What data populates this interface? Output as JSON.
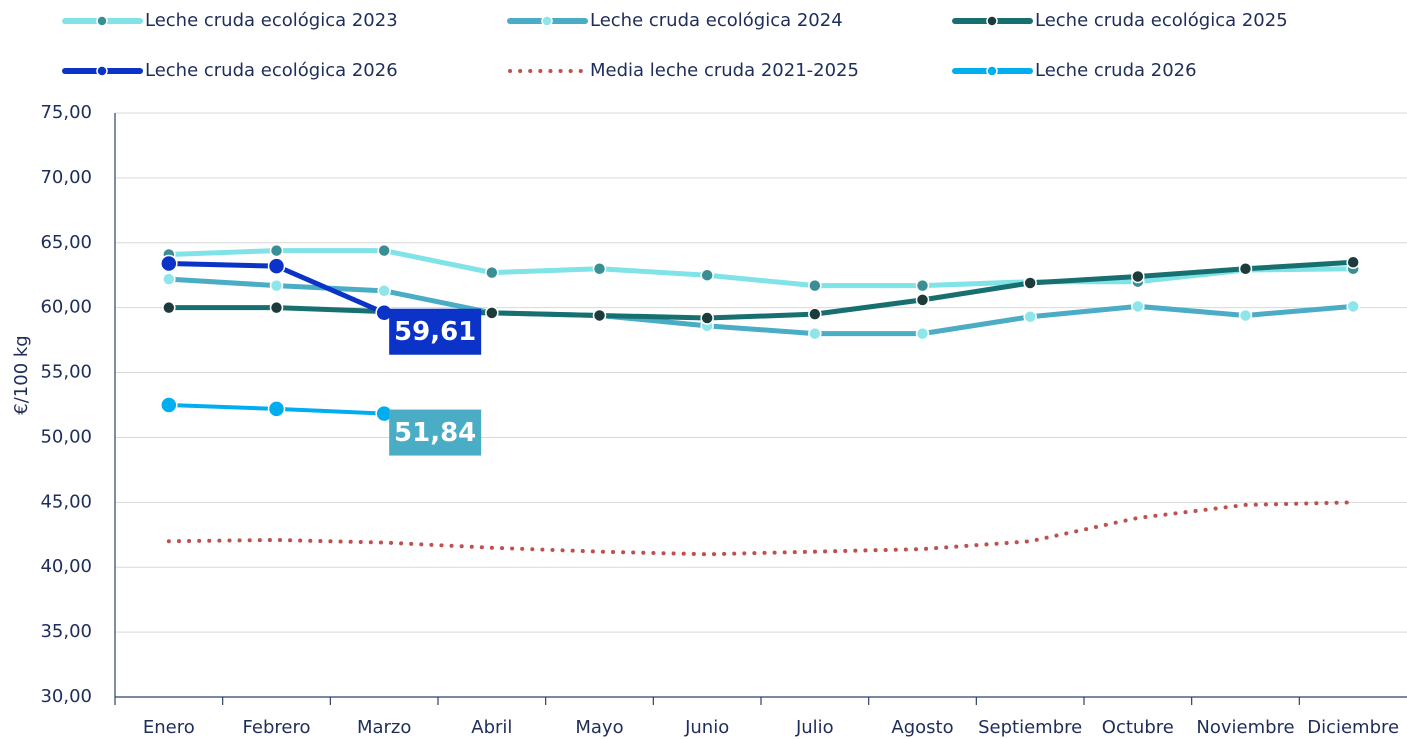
{
  "chart_data": {
    "type": "line",
    "y_label": "€/100 kg",
    "categories": [
      "Enero",
      "Febrero",
      "Marzo",
      "Abril",
      "Mayo",
      "Junio",
      "Julio",
      "Agosto",
      "Septiembre",
      "Octubre",
      "Noviembre",
      "Diciembre"
    ],
    "ylim": [
      30,
      75
    ],
    "yticks": [
      {
        "value": 30,
        "label": "30,00"
      },
      {
        "value": 35,
        "label": "35,00"
      },
      {
        "value": 40,
        "label": "40,00"
      },
      {
        "value": 45,
        "label": "45,00"
      },
      {
        "value": 50,
        "label": "50,00"
      },
      {
        "value": 55,
        "label": "55,00"
      },
      {
        "value": 60,
        "label": "60,00"
      },
      {
        "value": 65,
        "label": "65,00"
      },
      {
        "value": 70,
        "label": "70,00"
      },
      {
        "value": 75,
        "label": "75,00"
      }
    ],
    "grid": true,
    "legend": "top",
    "series": [
      {
        "name": "Leche cruda ecológica 2023",
        "color": "#7fe3e8",
        "marker_color": "#3a8f95",
        "width": 5,
        "marker_size": 6,
        "values": [
          64.1,
          64.4,
          64.4,
          62.7,
          63.0,
          62.5,
          61.7,
          61.7,
          62.0,
          62.0,
          62.9,
          63.0
        ]
      },
      {
        "name": "Leche cruda ecológica 2024",
        "color": "#4bacc6",
        "marker_color": "#8ee6ea",
        "width": 5,
        "marker_size": 6,
        "values": [
          62.2,
          61.7,
          61.3,
          59.6,
          59.4,
          58.6,
          58.0,
          58.0,
          59.3,
          60.1,
          59.4,
          60.1
        ]
      },
      {
        "name": "Leche cruda ecológica 2025",
        "color": "#17706f",
        "marker_color": "#1c3b3a",
        "width": 5,
        "marker_size": 6,
        "values": [
          60.0,
          60.0,
          59.7,
          59.6,
          59.4,
          59.2,
          59.5,
          60.6,
          61.9,
          62.4,
          63.0,
          63.5
        ]
      },
      {
        "name": "Leche cruda ecológica 2026",
        "color": "#0b33c8",
        "marker_color": "#0b33c8",
        "width": 5,
        "marker_size": 8,
        "values": [
          63.4,
          63.2,
          59.61,
          null,
          null,
          null,
          null,
          null,
          null,
          null,
          null,
          null
        ],
        "value_labels": [
          null,
          null,
          "59,61",
          null,
          null,
          null,
          null,
          null,
          null,
          null,
          null,
          null
        ],
        "label_color": "#0b33c8"
      },
      {
        "name": "Media leche cruda 2021-2025",
        "color": "#c0504d",
        "width": 4,
        "dash": "dotted",
        "values": [
          42.0,
          42.1,
          41.9,
          41.5,
          41.2,
          41.0,
          41.2,
          41.4,
          42.0,
          43.8,
          44.8,
          45.0
        ]
      },
      {
        "name": "Leche cruda 2026",
        "color": "#00aef0",
        "marker_color": "#00aef0",
        "width": 4,
        "marker_size": 8,
        "values": [
          52.5,
          52.2,
          51.84,
          null,
          null,
          null,
          null,
          null,
          null,
          null,
          null,
          null
        ],
        "value_labels": [
          null,
          null,
          "51,84",
          null,
          null,
          null,
          null,
          null,
          null,
          null,
          null,
          null
        ],
        "label_color": "#4bacc6"
      }
    ]
  }
}
